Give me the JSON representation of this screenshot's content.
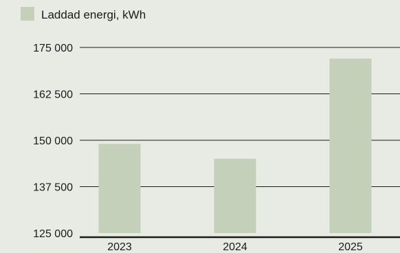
{
  "chart_data": {
    "type": "bar",
    "title": "",
    "xlabel": "",
    "ylabel": "",
    "categories": [
      "2023",
      "2024",
      "2025"
    ],
    "series": [
      {
        "name": "Laddad energi, kWh",
        "values": [
          149000,
          145000,
          172000
        ]
      }
    ],
    "ylim": [
      125000,
      175000
    ],
    "yticks": [
      125000,
      137500,
      150000,
      162500,
      175000
    ],
    "ytick_labels": [
      "125 000",
      "137 500",
      "150 000",
      "162 500",
      "175 000"
    ],
    "grid": true,
    "legend": "top-left",
    "colors": {
      "bar": "#c5d0bb",
      "background": "#e7ebe3",
      "grid": "#1a1a1a",
      "text": "#1a1a1a"
    }
  }
}
